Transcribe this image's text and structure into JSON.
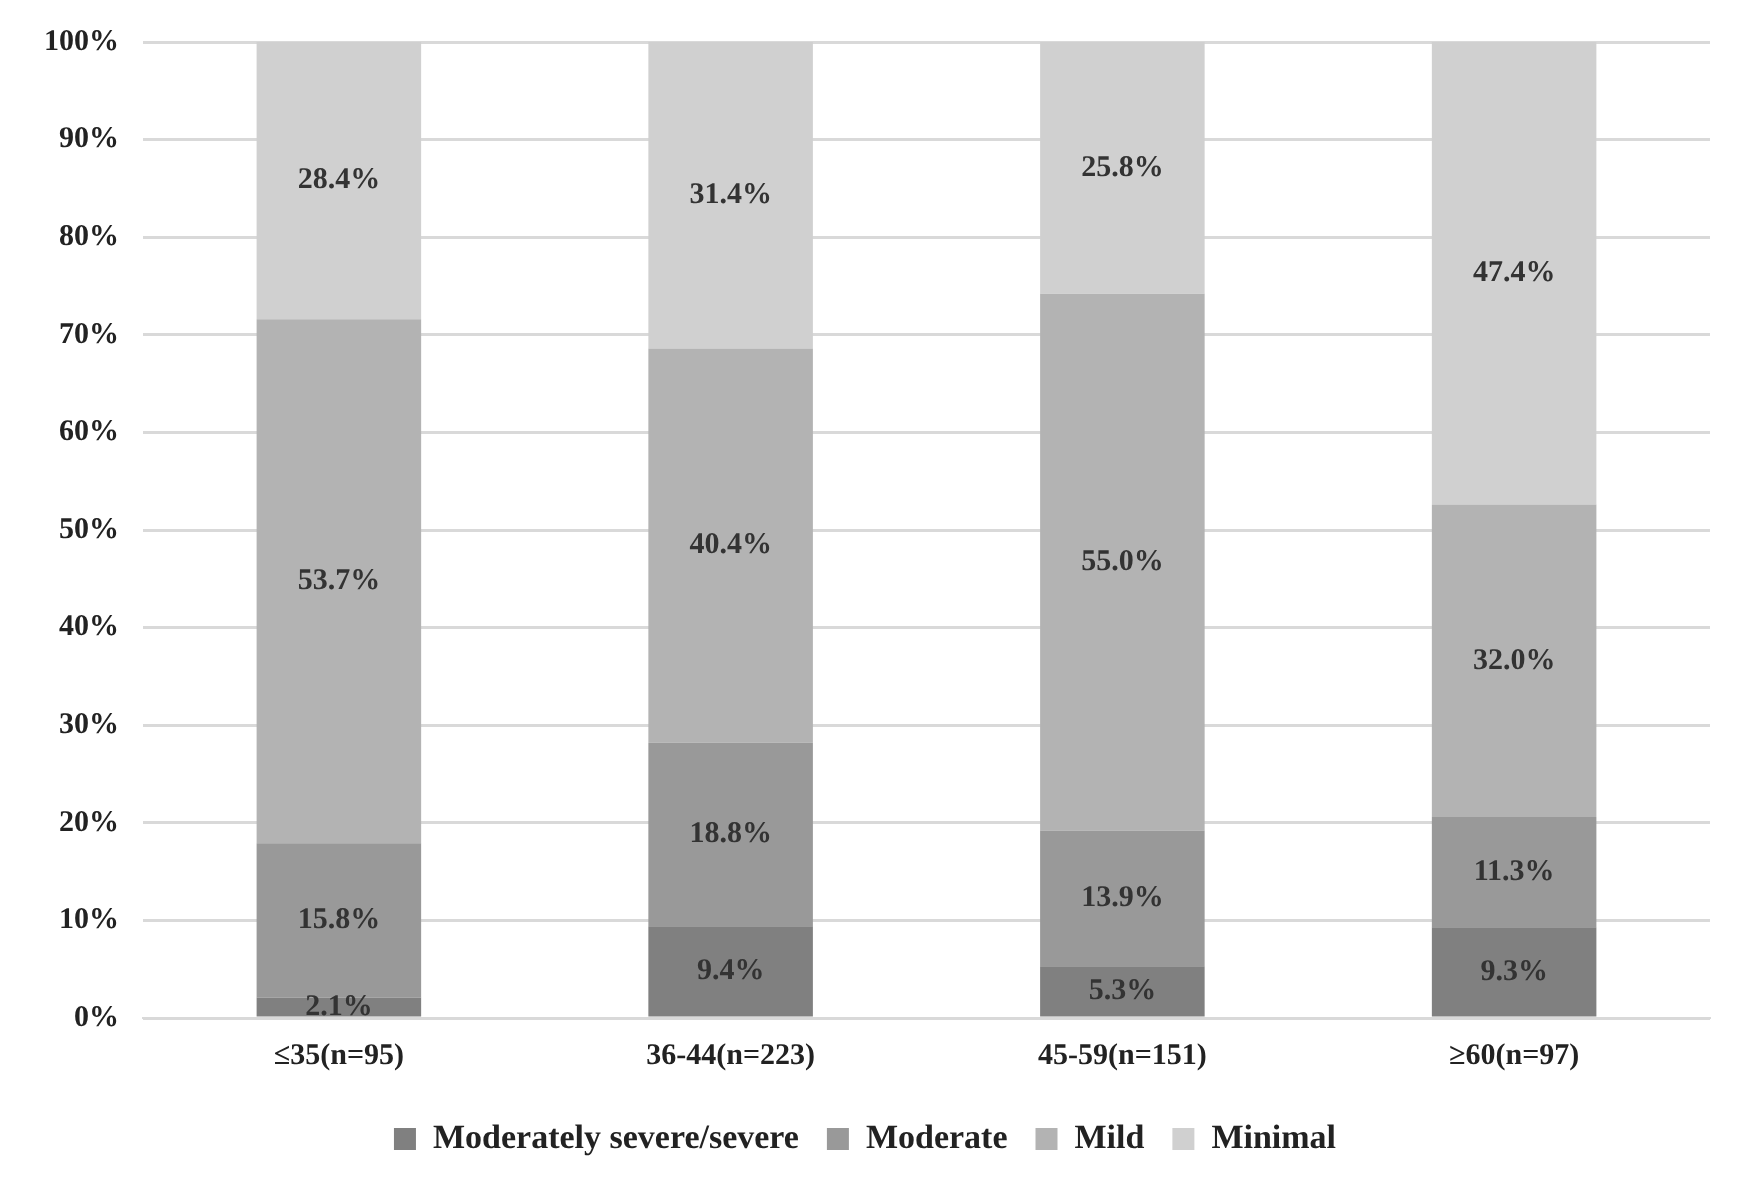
{
  "chart_data": {
    "type": "bar",
    "stacked": true,
    "categories": [
      "≤35(n=95)",
      "36-44(n=223)",
      "45-59(n=151)",
      "≥60(n=97)"
    ],
    "series": [
      {
        "name": "Moderately severe/severe",
        "color": "#808080",
        "values": [
          2.1,
          9.4,
          5.3,
          9.3
        ],
        "value_labels": [
          "2.1%",
          "9.4%",
          "5.3%",
          "9.3%"
        ]
      },
      {
        "name": "Moderate",
        "color": "#999999",
        "values": [
          15.8,
          18.8,
          13.9,
          11.3
        ],
        "value_labels": [
          "15.8%",
          "18.8%",
          "13.9%",
          "11.3%"
        ]
      },
      {
        "name": "Mild",
        "color": "#b3b3b3",
        "values": [
          53.7,
          40.4,
          55.0,
          32.0
        ],
        "value_labels": [
          "53.7%",
          "40.4%",
          "55.0%",
          "32.0%"
        ]
      },
      {
        "name": "Minimal",
        "color": "#d0d0d0",
        "values": [
          28.4,
          31.4,
          25.8,
          47.4
        ],
        "value_labels": [
          "28.4%",
          "31.4%",
          "25.8%",
          "47.4%"
        ]
      }
    ],
    "ylim": [
      0,
      100
    ],
    "yticks": [
      {
        "value": 0,
        "label": "0%"
      },
      {
        "value": 10,
        "label": "10%"
      },
      {
        "value": 20,
        "label": "20%"
      },
      {
        "value": 30,
        "label": "30%"
      },
      {
        "value": 40,
        "label": "40%"
      },
      {
        "value": 50,
        "label": "50%"
      },
      {
        "value": 60,
        "label": "60%"
      },
      {
        "value": 70,
        "label": "70%"
      },
      {
        "value": 80,
        "label": "80%"
      },
      {
        "value": 90,
        "label": "90%"
      },
      {
        "value": 100,
        "label": "100%"
      }
    ],
    "grid": "y",
    "legend": "bottom"
  }
}
